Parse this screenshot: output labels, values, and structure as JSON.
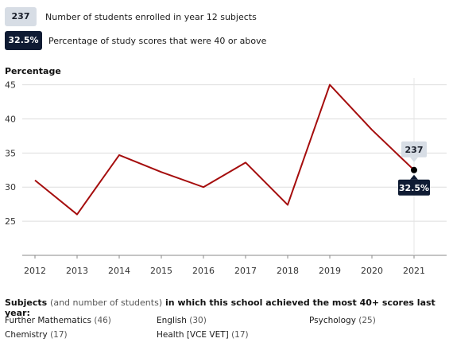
{
  "legend": {
    "count_badge": "237",
    "count_text": "Number of students enrolled in year 12 subjects",
    "pct_badge": "32.5%",
    "pct_text": "Percentage of study scores that were 40 or above"
  },
  "chart_data": {
    "type": "line",
    "ylabel": "Percentage",
    "x": [
      "2012",
      "2013",
      "2014",
      "2015",
      "2016",
      "2017",
      "2018",
      "2019",
      "2020",
      "2021"
    ],
    "series": [
      {
        "values": [
          31.0,
          26.0,
          34.7,
          32.2,
          30.0,
          33.6,
          27.4,
          45.0,
          38.4,
          32.5
        ]
      }
    ],
    "yticks": [
      25,
      30,
      35,
      40,
      45
    ],
    "ylim": [
      20,
      46
    ],
    "grid": true,
    "line_color": "#a50d0d",
    "highlight": {
      "x": "2021",
      "count_label": "237",
      "pct_label": "32.5%"
    }
  },
  "subjects": {
    "title_bold_1": "Subjects",
    "title_paren": "(and number of students)",
    "title_bold_2": "in which this school achieved the most 40+ scores last year:",
    "items": [
      {
        "name": "Further Mathematics",
        "count": "(46)"
      },
      {
        "name": "English",
        "count": "(30)"
      },
      {
        "name": "Psychology",
        "count": "(25)"
      },
      {
        "name": "Chemistry",
        "count": "(17)"
      },
      {
        "name": "Health [VCE VET]",
        "count": "(17)"
      }
    ]
  }
}
